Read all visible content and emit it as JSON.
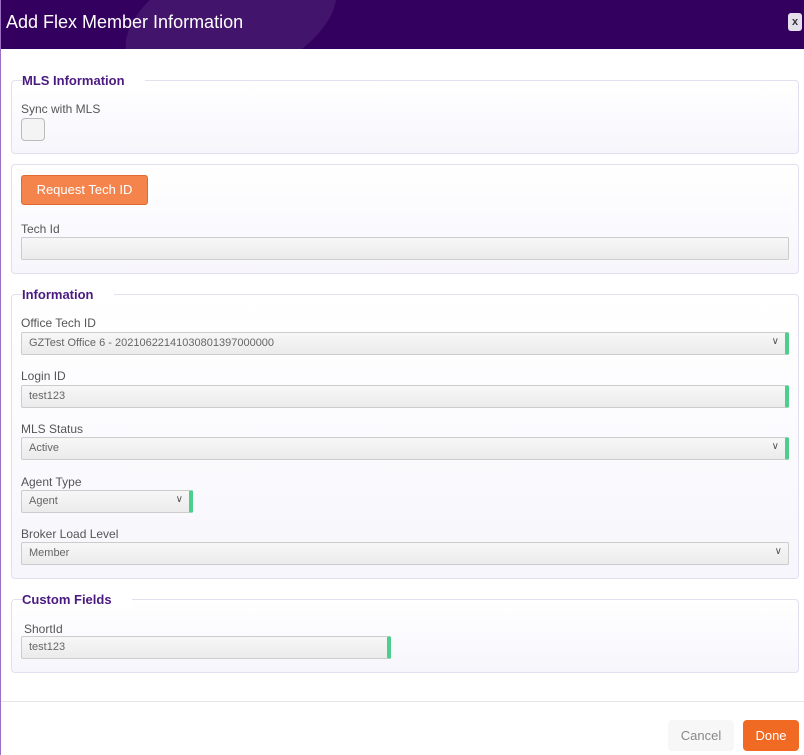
{
  "dialog": {
    "title": "Add Flex Member Information",
    "close_label": "x"
  },
  "mls": {
    "legend": "MLS Information",
    "sync_label": "Sync with MLS",
    "sync_checked": false
  },
  "tech": {
    "request_button": "Request Tech ID",
    "tech_id_label": "Tech Id",
    "tech_id_value": ""
  },
  "info": {
    "legend": "Information",
    "office_label": "Office Tech ID",
    "office_value": "GZTest Office 6 - 20210622141030801397000000",
    "login_label": "Login ID",
    "login_value": "test123",
    "status_label": "MLS Status",
    "status_value": "Active",
    "agent_type_label": "Agent Type",
    "agent_type_value": "Agent",
    "broker_label": "Broker Load Level",
    "broker_value": "Member"
  },
  "custom": {
    "legend": "Custom Fields",
    "shortid_label": "ShortId",
    "shortid_value": "test123"
  },
  "footer": {
    "cancel": "Cancel",
    "done": "Done"
  },
  "colors": {
    "header": "#33005f",
    "accent": "#f06a24",
    "valid": "#4ccf8c"
  }
}
